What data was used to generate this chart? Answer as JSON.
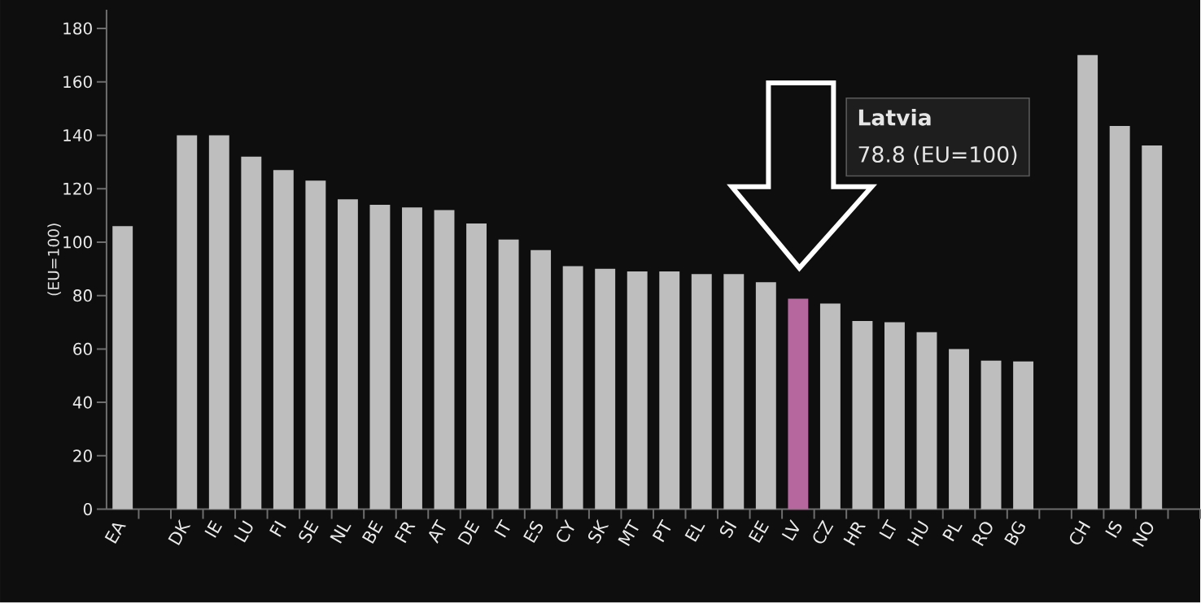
{
  "chart_data": {
    "type": "bar",
    "ylabel": "(EU=100)",
    "categories": [
      "EA",
      null,
      "DK",
      "IE",
      "LU",
      "FI",
      "SE",
      "NL",
      "BE",
      "FR",
      "AT",
      "DE",
      "IT",
      "ES",
      "CY",
      "SK",
      "MT",
      "PT",
      "EL",
      "SI",
      "EE",
      "LV",
      "CZ",
      "HR",
      "LT",
      "HU",
      "PL",
      "RO",
      "BG",
      null,
      "CH",
      "IS",
      "NO",
      null
    ],
    "values": [
      106,
      null,
      140,
      140,
      132,
      127,
      123,
      116,
      114,
      113,
      112,
      107,
      101,
      97,
      91,
      90,
      89,
      89,
      88,
      88,
      85,
      78.8,
      77,
      70.5,
      70,
      66.3,
      60,
      55.6,
      55.3,
      null,
      170,
      143.5,
      136.2,
      null
    ],
    "colors": [
      "#bebebe",
      "#bebebe",
      "#bebebe",
      "#bebebe",
      "#bebebe",
      "#bebebe",
      "#bebebe",
      "#bebebe",
      "#bebebe",
      "#bebebe",
      "#bebebe",
      "#bebebe",
      "#bebebe",
      "#bebebe",
      "#bebebe",
      "#bebebe",
      "#bebebe",
      "#bebebe",
      "#bebebe",
      "#bebebe",
      "#bebebe",
      "#b5679e",
      "#bebebe",
      "#bebebe",
      "#bebebe",
      "#bebebe",
      "#bebebe",
      "#bebebe",
      "#bebebe",
      "#bebebe",
      "#bebebe",
      "#bebebe",
      "#bebebe",
      "#bebebe"
    ],
    "ylim": [
      0,
      187
    ],
    "yticks": [
      0,
      20,
      40,
      60,
      80,
      100,
      120,
      140,
      160,
      180
    ],
    "annotations": [
      "Latvia",
      "78.8 (EU=100)"
    ]
  }
}
